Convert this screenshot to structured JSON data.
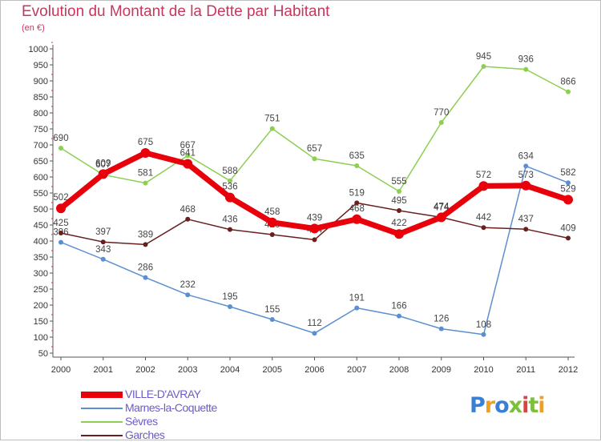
{
  "title": "Evolution du Montant de la Dette par Habitant",
  "subtitle": "(en €)",
  "chart_data": {
    "type": "line",
    "x": [
      "2000",
      "2001",
      "2002",
      "2003",
      "2004",
      "2005",
      "2006",
      "2007",
      "2008",
      "2009",
      "2010",
      "2011",
      "2012"
    ],
    "ylim": [
      50,
      1000
    ],
    "yticks": [
      50,
      100,
      150,
      200,
      250,
      300,
      350,
      400,
      450,
      500,
      550,
      600,
      650,
      700,
      750,
      800,
      850,
      900,
      950,
      1000
    ],
    "grid": false,
    "legend_position": "bottom-left",
    "series": [
      {
        "name": "Sèvres",
        "color": "#8ccf52",
        "values": [
          690,
          607,
          581,
          667,
          588,
          751,
          657,
          635,
          555,
          770,
          945,
          936,
          866
        ]
      },
      {
        "name": "Marnes-la-Coquette",
        "color": "#5b8fd0",
        "values": [
          396,
          343,
          286,
          232,
          195,
          155,
          112,
          191,
          166,
          126,
          108,
          634,
          582
        ]
      },
      {
        "name": "Garches",
        "color": "#6a1f1f",
        "values": [
          425,
          397,
          389,
          468,
          436,
          420,
          404,
          519,
          495,
          474,
          442,
          437,
          409
        ]
      },
      {
        "name": "VILLE-D'AVRAY",
        "color": "#e8000b",
        "values": [
          502,
          609,
          675,
          641,
          536,
          458,
          439,
          468,
          422,
          474,
          572,
          573,
          529
        ]
      }
    ]
  },
  "legend": [
    {
      "label": "VILLE-D'AVRAY",
      "color": "#e8000b",
      "width": 8
    },
    {
      "label": "Marnes-la-Coquette",
      "color": "#5b8fd0",
      "width": 2
    },
    {
      "label": "Sèvres",
      "color": "#8ccf52",
      "width": 2
    },
    {
      "label": "Garches",
      "color": "#6a1f1f",
      "width": 2
    }
  ],
  "logo": {
    "letters": [
      "P",
      "r",
      "o",
      "x",
      "i",
      "t",
      "i"
    ],
    "colors": [
      "#3a7fd6",
      "#f0a020",
      "#3a7fd6",
      "#7cbf3a",
      "#e04040",
      "#7cbf3a",
      "#f0a020"
    ]
  }
}
